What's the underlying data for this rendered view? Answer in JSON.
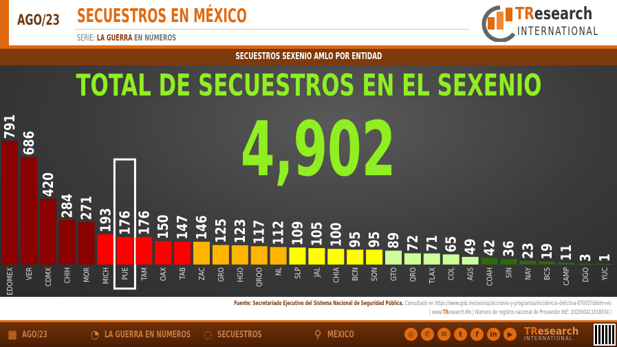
{
  "header": {
    "date": "AGO/23",
    "title": "SECUESTROS EN MÉXICO",
    "serie_prefix": "SERIE:",
    "serie_bold": "LA GUERRA",
    "serie_suffix": "EN NÚMEROS",
    "logo_t": "TR",
    "logo_rest": "esearch",
    "logo_sub": "INTERNATIONAL"
  },
  "band_title": "SECUESTROS SEXENIO AMLO POR ENTIDAD",
  "main": {
    "headline": "TOTAL DE SECUESTROS EN EL SEXENIO",
    "total": "4,902"
  },
  "chart_data": {
    "type": "bar",
    "categories": [
      "EDOMEX",
      "VER",
      "CDMX",
      "CHIH",
      "MOR",
      "MICH",
      "PUE",
      "TAM",
      "OAX",
      "TAB",
      "ZAC",
      "GRO",
      "HGO",
      "QROO",
      "NL",
      "SLP",
      "JAL",
      "CHIA",
      "BCN",
      "SON",
      "GTO",
      "QRO",
      "TLAX",
      "COL",
      "AGS",
      "COAH",
      "SIN",
      "NAY",
      "BCS",
      "CAMP",
      "DGO",
      "YUC"
    ],
    "values": [
      791,
      686,
      420,
      284,
      271,
      193,
      176,
      176,
      150,
      147,
      146,
      125,
      123,
      117,
      112,
      109,
      105,
      100,
      95,
      95,
      89,
      72,
      71,
      65,
      49,
      42,
      36,
      23,
      19,
      11,
      3,
      1
    ],
    "highlighted": "PUE",
    "color_groups": [
      {
        "color": "#8b0000",
        "categories": [
          "EDOMEX",
          "VER",
          "CDMX",
          "CHIH",
          "MOR"
        ]
      },
      {
        "color": "#ff0000",
        "categories": [
          "MICH",
          "PUE",
          "TAM",
          "OAX",
          "TAB"
        ]
      },
      {
        "color": "#ffb400",
        "categories": [
          "ZAC",
          "GRO",
          "HGO",
          "QROO",
          "NL"
        ]
      },
      {
        "color": "#ffff00",
        "categories": [
          "SLP",
          "JAL",
          "CHIA",
          "BCN",
          "SON"
        ]
      },
      {
        "color": "#ccff99",
        "categories": [
          "GTO",
          "QRO",
          "TLAX",
          "COL",
          "AGS"
        ]
      },
      {
        "color": "#2e6b0a",
        "categories": [
          "COAH",
          "SIN",
          "NAY",
          "BCS",
          "CAMP",
          "DGO",
          "YUC"
        ]
      }
    ],
    "grid": false
  },
  "source": {
    "label": "Fuente: Secretariado Ejecutivo del Sistema Nacional de Seguridad Pública.",
    "consulted": "Consultado en https://www.gob.mx/sesnsp/acciones-y-programas/incidencia-delictiva-87005?idiom=es",
    "line2_pre": "| www.",
    "line2_tr": "TR",
    "line2_post": "esearch.Mx | Número de registro nacional de Proveedor INE: 202000411018934 |"
  },
  "footer": {
    "items": [
      {
        "icon": "calendar-icon",
        "label": "AGO/23"
      },
      {
        "icon": "chart-doc-icon",
        "label": "LA GUERRA EN NÚMEROS"
      },
      {
        "icon": "chat-chart-icon",
        "label": "SECUESTROS"
      },
      {
        "icon": "map-pin-icon",
        "label": "MÉXICO"
      }
    ],
    "social": [
      "globe-icon",
      "whatsapp-icon",
      "email-icon",
      "twitter-icon",
      "facebook-icon",
      "linkedin-icon",
      "youtube-icon"
    ],
    "logo_tr": "TR",
    "logo_rest": "esearch",
    "logo_sub": "INTERNATIONAL"
  }
}
